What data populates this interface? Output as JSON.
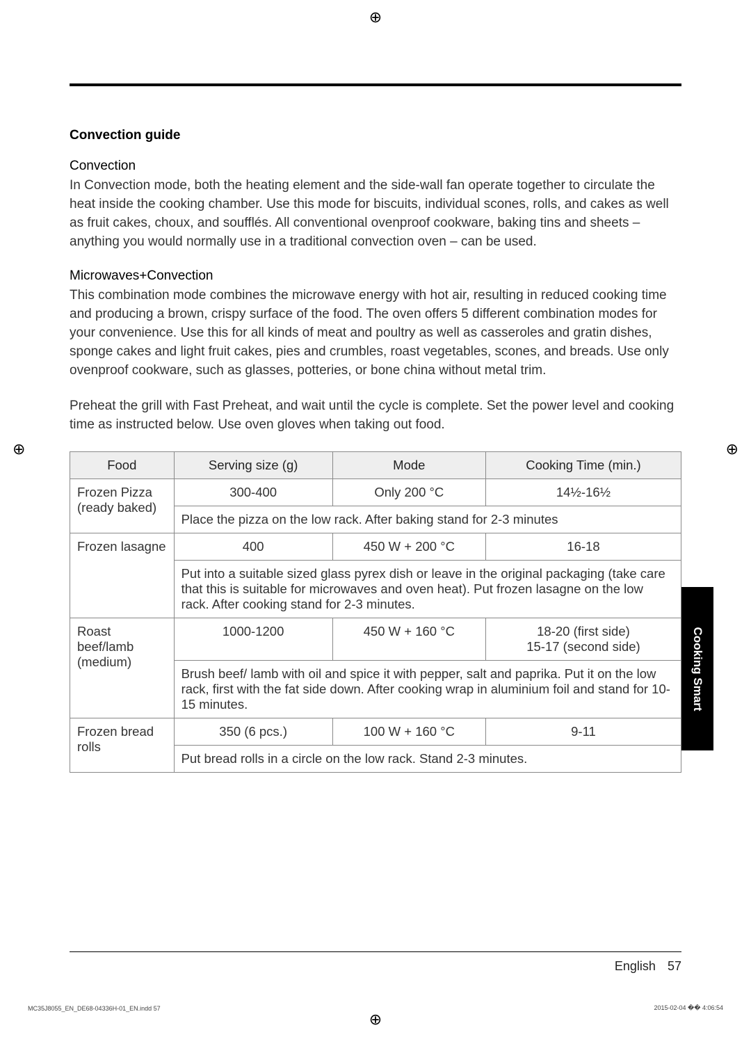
{
  "section_title": "Convection guide",
  "sub1_title": "Convection",
  "sub1_body": "In Convection mode, both the heating element and the side-wall fan operate together to circulate the heat inside the cooking chamber. Use this mode for biscuits, individual scones, rolls, and cakes as well as fruit cakes, choux, and soufflés. All conventional ovenproof cookware, baking tins and sheets – anything you would normally use in a traditional convection oven – can be used.",
  "sub2_title": "Microwaves+Convection",
  "sub2_body": "This combination mode combines the microwave energy with hot air, resulting in reduced cooking time and producing a brown, crispy surface of the food. The oven offers 5 different combination modes for your convenience. Use this for all kinds of meat and poultry as well as casseroles and gratin dishes, sponge cakes and light fruit cakes, pies and crumbles, roast vegetables, scones, and breads. Use only ovenproof cookware, such as glasses, potteries, or bone china without metal trim.",
  "preheat_note": "Preheat the grill with Fast Preheat, and wait until the cycle is complete. Set the power level and cooking time as instructed below. Use oven gloves when taking out food.",
  "table": {
    "headers": [
      "Food",
      "Serving size (g)",
      "Mode",
      "Cooking Time (min.)"
    ],
    "rows": [
      {
        "food": "Frozen Pizza (ready baked)",
        "size": "300-400",
        "mode": "Only 200 °C",
        "time": "14½-16½",
        "instruction": "Place the pizza on the low rack. After baking stand for 2-3 minutes"
      },
      {
        "food": "Frozen lasagne",
        "size": "400",
        "mode": "450 W + 200 °C",
        "time": "16-18",
        "instruction": "Put into a suitable sized glass pyrex dish or leave in the original packaging (take care that this is suitable for microwaves and oven heat). Put frozen lasagne on the low rack. After cooking stand for 2-3 minutes."
      },
      {
        "food": "Roast beef/lamb (medium)",
        "size": "1000-1200",
        "mode": "450 W + 160 °C",
        "time": "18-20 (first side)\n15-17 (second side)",
        "instruction": "Brush beef/ lamb with oil and spice it with pepper, salt and paprika. Put it on the low rack, first with the fat side down. After cooking wrap in aluminium foil and stand for 10-15 minutes."
      },
      {
        "food": "Frozen bread rolls",
        "size": "350 (6 pcs.)",
        "mode": "100 W + 160 °C",
        "time": "9-11",
        "instruction": "Put bread rolls in a circle on the low rack. Stand 2-3 minutes."
      }
    ]
  },
  "side_tab": "Cooking Smart",
  "footer_lang": "English",
  "footer_page": "57",
  "imprint_left": "MC35J8055_EN_DE68-04336H-01_EN.indd   57",
  "imprint_right": "2015-02-04   �� 4:06:54"
}
